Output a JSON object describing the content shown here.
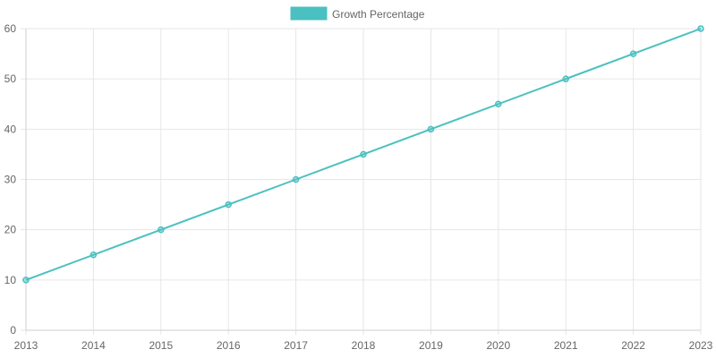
{
  "chart_data": {
    "type": "line",
    "x": [
      "2013",
      "2014",
      "2015",
      "2016",
      "2017",
      "2018",
      "2019",
      "2020",
      "2021",
      "2022",
      "2023"
    ],
    "series": [
      {
        "name": "Growth Percentage",
        "values": [
          10,
          15,
          20,
          25,
          30,
          35,
          40,
          45,
          50,
          55,
          60
        ],
        "color": "#4bc0c0"
      }
    ],
    "y_ticks": [
      "0",
      "10",
      "20",
      "30",
      "40",
      "50",
      "60"
    ],
    "ylim": [
      0,
      60
    ],
    "grid": true,
    "legend_position": "top-center",
    "title": "",
    "xlabel": "",
    "ylabel": ""
  }
}
